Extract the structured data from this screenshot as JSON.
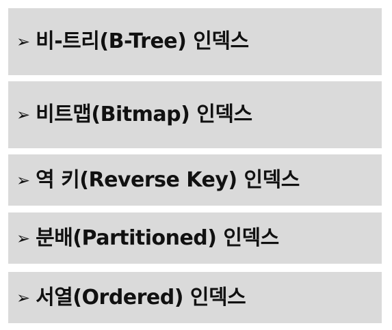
{
  "items": [
    {
      "arrow": "➢",
      "label": "비-트리(B-Tree) 인덱스"
    },
    {
      "arrow": "➢",
      "label": "비트맵(Bitmap) 인덱스"
    },
    {
      "arrow": "➢",
      "label": "역 키(Reverse Key) 인덱스"
    },
    {
      "arrow": "➢",
      "label": "분배(Partitioned) 인덱스"
    },
    {
      "arrow": "➢",
      "label": "서열(Ordered) 인덱스"
    }
  ],
  "colors": {
    "panel_background": "#dadada",
    "text": "#111111"
  }
}
